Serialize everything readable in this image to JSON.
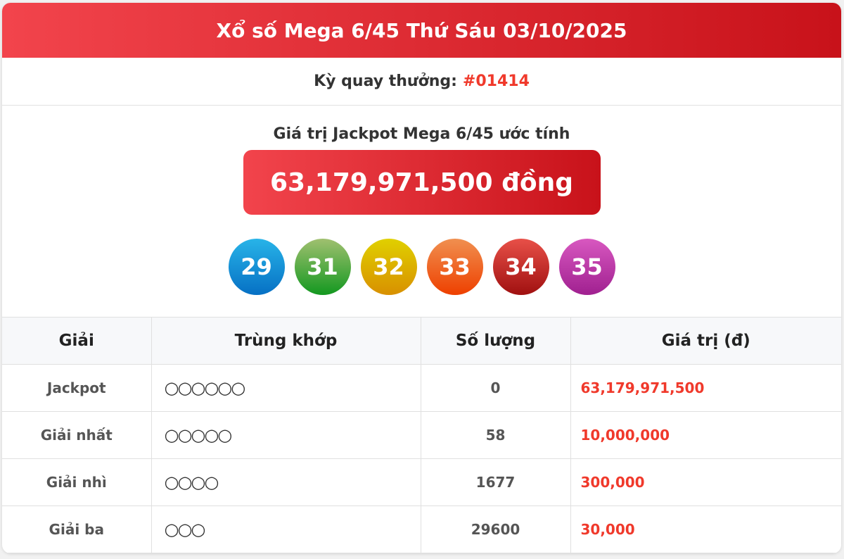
{
  "header": {
    "title": "Xổ số Mega 6/45 Thứ Sáu 03/10/2025"
  },
  "draw": {
    "label": "Kỳ quay thưởng:",
    "number": "#01414"
  },
  "jackpot": {
    "label": "Giá trị Jackpot Mega 6/45 ước tính",
    "value": "63,179,971,500 đồng"
  },
  "balls": [
    {
      "n": "29",
      "color": "#1a8fd8"
    },
    {
      "n": "31",
      "color": "#4caa3a"
    },
    {
      "n": "32",
      "color": "#dcb400"
    },
    {
      "n": "33",
      "color": "#f0642a"
    },
    {
      "n": "34",
      "color": "#c42020"
    },
    {
      "n": "35",
      "color": "#c040a8"
    }
  ],
  "table": {
    "headers": [
      "Giải",
      "Trùng khớp",
      "Số lượng",
      "Giá trị (đ)"
    ],
    "rows": [
      {
        "prize": "Jackpot",
        "match": "○○○○○○",
        "count": "0",
        "value": "63,179,971,500"
      },
      {
        "prize": "Giải nhất",
        "match": "○○○○○",
        "count": "58",
        "value": "10,000,000"
      },
      {
        "prize": "Giải nhì",
        "match": "○○○○",
        "count": "1677",
        "value": "300,000"
      },
      {
        "prize": "Giải ba",
        "match": "○○○",
        "count": "29600",
        "value": "30,000"
      }
    ]
  },
  "colors": {
    "accent": "#e0242c",
    "value_text": "#f0392b"
  }
}
